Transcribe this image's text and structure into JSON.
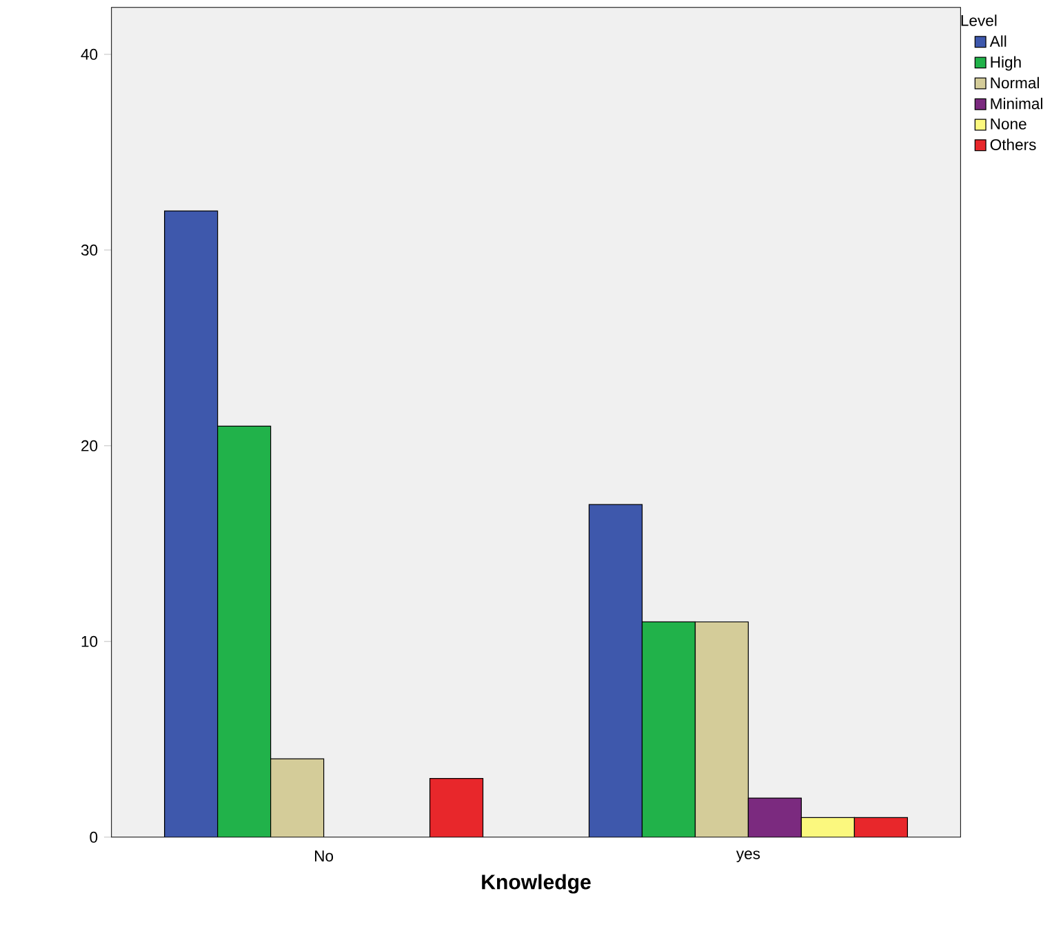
{
  "chart_data": {
    "type": "bar",
    "xlabel": "Knowledge",
    "legend_title": "Level",
    "categories": [
      "No",
      "yes"
    ],
    "series": [
      {
        "name": "All",
        "color": "#3e58ac",
        "values": [
          32,
          17
        ]
      },
      {
        "name": "High",
        "color": "#21b24a",
        "values": [
          21,
          11
        ]
      },
      {
        "name": "Normal",
        "color": "#d4cc99",
        "values": [
          4,
          11
        ]
      },
      {
        "name": "Minimal",
        "color": "#7b2a7f",
        "values": [
          null,
          2
        ]
      },
      {
        "name": "None",
        "color": "#fbf87e",
        "values": [
          null,
          1
        ]
      },
      {
        "name": "Others",
        "color": "#e8272b",
        "values": [
          3,
          1
        ]
      }
    ],
    "ylim": [
      0,
      42.4
    ],
    "yticks": [
      0,
      10,
      20,
      30,
      40
    ],
    "grid": false,
    "legend": "right"
  }
}
